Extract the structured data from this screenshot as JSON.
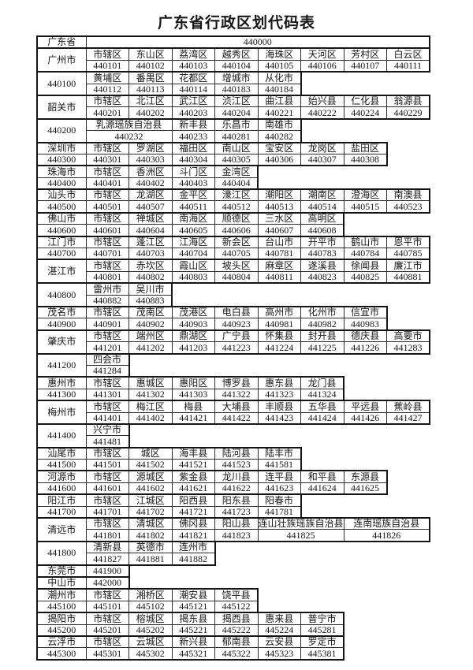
{
  "title": "广东省行政区划代码表",
  "colors": {
    "ink": "#161616",
    "grid": "#2e2e2e",
    "grid_heavy": "#141414",
    "paper": "#ffffff"
  },
  "table": {
    "columns": 8,
    "blocks": [
      {
        "type": "province",
        "label": "广东省",
        "code": "440000"
      },
      {
        "type": "pair",
        "label": "广州市",
        "divisions": [
          {
            "name": "市辖区",
            "code": "440101"
          },
          {
            "name": "东山区",
            "code": "440102"
          },
          {
            "name": "荔湾区",
            "code": "440103"
          },
          {
            "name": "越秀区",
            "code": "440104"
          },
          {
            "name": "海珠区",
            "code": "440105"
          },
          {
            "name": "天河区",
            "code": "440106"
          },
          {
            "name": "芳村区",
            "code": "440107"
          },
          {
            "name": "白云区",
            "code": "440111"
          }
        ]
      },
      {
        "type": "pair",
        "label": "440100",
        "divisions": [
          {
            "name": "黄埔区",
            "code": "440112"
          },
          {
            "name": "番禺区",
            "code": "440113"
          },
          {
            "name": "花都区",
            "code": "440114"
          },
          {
            "name": "增城市",
            "code": "440183"
          },
          {
            "name": "从化市",
            "code": "440184"
          }
        ]
      },
      {
        "type": "pair",
        "label": "韶关市",
        "divisions": [
          {
            "name": "市辖区",
            "code": "440201"
          },
          {
            "name": "北江区",
            "code": "440202"
          },
          {
            "name": "武江区",
            "code": "440203"
          },
          {
            "name": "浈江区",
            "code": "440204"
          },
          {
            "name": "曲江县",
            "code": "440221"
          },
          {
            "name": "始兴县",
            "code": "440222"
          },
          {
            "name": "仁化县",
            "code": "440224"
          },
          {
            "name": "翁源县",
            "code": "440229"
          }
        ]
      },
      {
        "type": "pair",
        "label": "440200",
        "divisions": [
          {
            "name": "乳源瑶族自治县",
            "code": "440232",
            "span": 2
          },
          {
            "name": "新丰县",
            "code": "440233"
          },
          {
            "name": "乐昌市",
            "code": "440281"
          },
          {
            "name": "南雄市",
            "code": "440282"
          }
        ]
      },
      {
        "type": "single",
        "name": "深圳市",
        "code": "440300",
        "divisions": [
          {
            "name": "市辖区",
            "code": "440301"
          },
          {
            "name": "罗湖区",
            "code": "440303"
          },
          {
            "name": "福田区",
            "code": "440304"
          },
          {
            "name": "南山区",
            "code": "440305"
          },
          {
            "name": "宝安区",
            "code": "440306"
          },
          {
            "name": "龙岗区",
            "code": "440307"
          },
          {
            "name": "盐田区",
            "code": "440308"
          }
        ]
      },
      {
        "type": "single",
        "name": "珠海市",
        "code": "440400",
        "divisions": [
          {
            "name": "市辖区",
            "code": "440401"
          },
          {
            "name": "香洲区",
            "code": "440402"
          },
          {
            "name": "斗门区",
            "code": "440403"
          },
          {
            "name": "金湾区",
            "code": "440404"
          }
        ]
      },
      {
        "type": "single",
        "name": "汕头市",
        "code": "440500",
        "divisions": [
          {
            "name": "市辖区",
            "code": "440501"
          },
          {
            "name": "龙湖区",
            "code": "440507"
          },
          {
            "name": "金平区",
            "code": "440511"
          },
          {
            "name": "濠江区",
            "code": "440512"
          },
          {
            "name": "潮阳区",
            "code": "440513"
          },
          {
            "name": "潮南区",
            "code": "440514"
          },
          {
            "name": "澄海区",
            "code": "440515"
          },
          {
            "name": "南澳县",
            "code": "440523"
          }
        ]
      },
      {
        "type": "single",
        "name": "佛山市",
        "code": "440600",
        "divisions": [
          {
            "name": "市辖区",
            "code": "440601"
          },
          {
            "name": "禅城区",
            "code": "440604"
          },
          {
            "name": "南海区",
            "code": "440605"
          },
          {
            "name": "顺德区",
            "code": "440606"
          },
          {
            "name": "三水区",
            "code": "440607"
          },
          {
            "name": "高明区",
            "code": "440608"
          }
        ]
      },
      {
        "type": "single",
        "name": "江门市",
        "code": "440700",
        "divisions": [
          {
            "name": "市辖区",
            "code": "440701"
          },
          {
            "name": "蓬江区",
            "code": "440703"
          },
          {
            "name": "江海区",
            "code": "440704"
          },
          {
            "name": "新会区",
            "code": "440705"
          },
          {
            "name": "台山市",
            "code": "440781"
          },
          {
            "name": "开平市",
            "code": "440783"
          },
          {
            "name": "鹤山市",
            "code": "440784"
          },
          {
            "name": "恩平市",
            "code": "440785"
          }
        ]
      },
      {
        "type": "pair",
        "label": "湛江市",
        "divisions": [
          {
            "name": "市辖区",
            "code": "440801"
          },
          {
            "name": "赤坎区",
            "code": "440802"
          },
          {
            "name": "霞山区",
            "code": "440803"
          },
          {
            "name": "坡头区",
            "code": "440804"
          },
          {
            "name": "麻章区",
            "code": "440811"
          },
          {
            "name": "遂溪县",
            "code": "440823"
          },
          {
            "name": "徐闻县",
            "code": "440825"
          },
          {
            "name": "廉江市",
            "code": "440881"
          }
        ]
      },
      {
        "type": "pair",
        "label": "440800",
        "divisions": [
          {
            "name": "雷州市",
            "code": "440882"
          },
          {
            "name": "吴川市",
            "code": "440883"
          }
        ]
      },
      {
        "type": "single",
        "name": "茂名市",
        "code": "440900",
        "divisions": [
          {
            "name": "市辖区",
            "code": "440901"
          },
          {
            "name": "茂南区",
            "code": "440902"
          },
          {
            "name": "茂港区",
            "code": "440903"
          },
          {
            "name": "电白县",
            "code": "440923"
          },
          {
            "name": "高州市",
            "code": "440981"
          },
          {
            "name": "化州市",
            "code": "440982"
          },
          {
            "name": "信宜市",
            "code": "440983"
          }
        ]
      },
      {
        "type": "pair",
        "label": "肇庆市",
        "divisions": [
          {
            "name": "市辖区",
            "code": "441201"
          },
          {
            "name": "端州区",
            "code": "441202"
          },
          {
            "name": "鼎湖区",
            "code": "441203"
          },
          {
            "name": "广宁县",
            "code": "441223"
          },
          {
            "name": "怀集县",
            "code": "441224"
          },
          {
            "name": "封开县",
            "code": "441225"
          },
          {
            "name": "德庆县",
            "code": "441226"
          },
          {
            "name": "高要市",
            "code": "441283"
          }
        ]
      },
      {
        "type": "pair",
        "label": "441200",
        "divisions": [
          {
            "name": "四会市",
            "code": "441284"
          }
        ]
      },
      {
        "type": "single",
        "name": "惠州市",
        "code": "441300",
        "divisions": [
          {
            "name": "市辖区",
            "code": "441301"
          },
          {
            "name": "惠城区",
            "code": "441302"
          },
          {
            "name": "惠阳区",
            "code": "441303"
          },
          {
            "name": "博罗县",
            "code": "441322"
          },
          {
            "name": "惠东县",
            "code": "441323"
          },
          {
            "name": "龙门县",
            "code": "441324"
          }
        ]
      },
      {
        "type": "pair",
        "label": "梅州市",
        "divisions": [
          {
            "name": "市辖区",
            "code": "441401"
          },
          {
            "name": "梅江区",
            "code": "441402"
          },
          {
            "name": "梅县",
            "code": "441421"
          },
          {
            "name": "大埔县",
            "code": "441422"
          },
          {
            "name": "丰顺县",
            "code": "441423"
          },
          {
            "name": "五华县",
            "code": "441424"
          },
          {
            "name": "平远县",
            "code": "441426"
          },
          {
            "name": "蕉岭县",
            "code": "441427"
          }
        ]
      },
      {
        "type": "pair",
        "label": "441400",
        "divisions": [
          {
            "name": "兴宁市",
            "code": "441481"
          }
        ]
      },
      {
        "type": "single",
        "name": "汕尾市",
        "code": "441500",
        "divisions": [
          {
            "name": "市辖区",
            "code": "441501"
          },
          {
            "name": "城区",
            "code": "441502"
          },
          {
            "name": "海丰县",
            "code": "441521"
          },
          {
            "name": "陆河县",
            "code": "441523"
          },
          {
            "name": "陆丰市",
            "code": "441581"
          }
        ]
      },
      {
        "type": "single",
        "name": "河源市",
        "code": "441600",
        "divisions": [
          {
            "name": "市辖区",
            "code": "441601"
          },
          {
            "name": "源城区",
            "code": "441602"
          },
          {
            "name": "紫金县",
            "code": "441621"
          },
          {
            "name": "龙川县",
            "code": "441622"
          },
          {
            "name": "连平县",
            "code": "441623"
          },
          {
            "name": "和平县",
            "code": "441624"
          },
          {
            "name": "东源县",
            "code": "441625"
          }
        ]
      },
      {
        "type": "single",
        "name": "阳江市",
        "code": "441700",
        "divisions": [
          {
            "name": "市辖区",
            "code": "441701"
          },
          {
            "name": "江城区",
            "code": "441702"
          },
          {
            "name": "阳西县",
            "code": "441721"
          },
          {
            "name": "阳东县",
            "code": "441723"
          },
          {
            "name": "阳春市",
            "code": "441781"
          }
        ]
      },
      {
        "type": "pair",
        "label": "清远市",
        "divisions": [
          {
            "name": "市辖区",
            "code": "441801"
          },
          {
            "name": "清城区",
            "code": "441802"
          },
          {
            "name": "佛冈县",
            "code": "441821"
          },
          {
            "name": "阳山县",
            "code": "441823"
          },
          {
            "name": "连山壮族瑶族自治县",
            "code": "441825",
            "span": 2
          },
          {
            "name": "连南瑶族自治县",
            "code": "441826",
            "span": 2
          }
        ]
      },
      {
        "type": "pair",
        "label": "441800",
        "divisions": [
          {
            "name": "清新县",
            "code": "441827"
          },
          {
            "name": "英德市",
            "code": "441881"
          },
          {
            "name": "连州市",
            "code": "441882"
          }
        ]
      },
      {
        "type": "oneline",
        "name": "东莞市",
        "code": "441900"
      },
      {
        "type": "oneline",
        "name": "中山市",
        "code": "442000"
      },
      {
        "type": "single",
        "name": "潮州市",
        "code": "445100",
        "divisions": [
          {
            "name": "市辖区",
            "code": "445101"
          },
          {
            "name": "湘桥区",
            "code": "445102"
          },
          {
            "name": "潮安县",
            "code": "445121"
          },
          {
            "name": "饶平县",
            "code": "445122"
          }
        ]
      },
      {
        "type": "single",
        "name": "揭阳市",
        "code": "445200",
        "divisions": [
          {
            "name": "市辖区",
            "code": "445201"
          },
          {
            "name": "榕城区",
            "code": "445202"
          },
          {
            "name": "揭东县",
            "code": "445221"
          },
          {
            "name": "揭西县",
            "code": "445222"
          },
          {
            "name": "惠来县",
            "code": "445224"
          },
          {
            "name": "普宁市",
            "code": "445281"
          }
        ]
      },
      {
        "type": "single",
        "name": "云浮市",
        "code": "445300",
        "divisions": [
          {
            "name": "市辖区",
            "code": "445301"
          },
          {
            "name": "云城区",
            "code": "445302"
          },
          {
            "name": "新兴县",
            "code": "445321"
          },
          {
            "name": "郁南县",
            "code": "445322"
          },
          {
            "name": "云安县",
            "code": "445323"
          },
          {
            "name": "罗定市",
            "code": "445381"
          }
        ]
      }
    ]
  }
}
